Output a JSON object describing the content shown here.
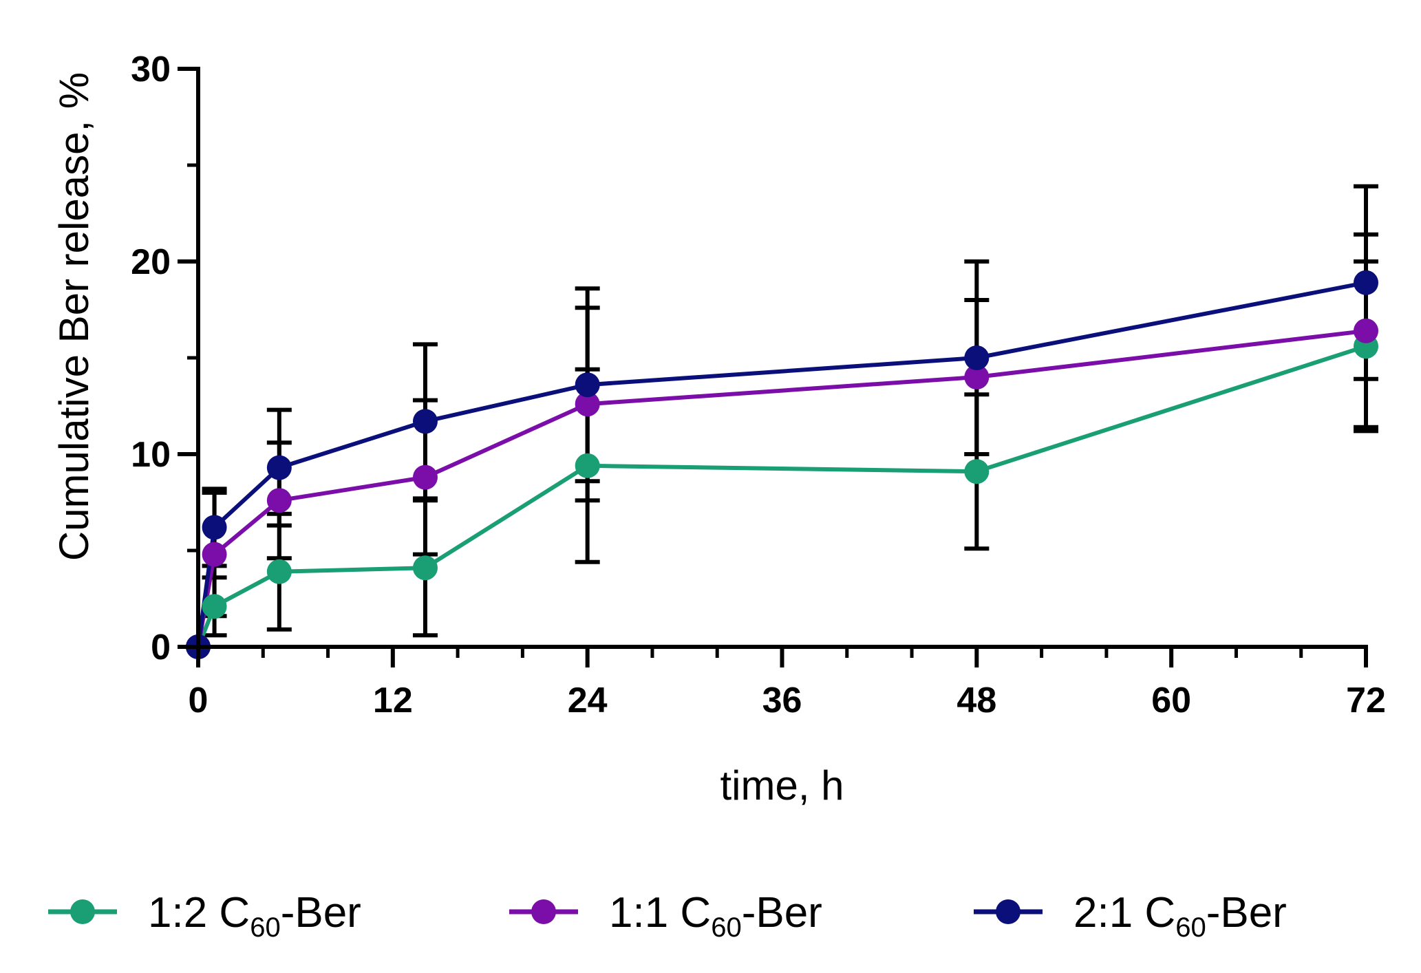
{
  "chart_data": {
    "type": "line",
    "xlabel": "time, h",
    "ylabel": "Cumulative Ber release, %",
    "xlim": [
      0,
      72
    ],
    "ylim": [
      0,
      30
    ],
    "xticks": [
      0,
      12,
      24,
      36,
      48,
      60,
      72
    ],
    "xtick_labels": [
      "0",
      "12",
      "24",
      "36",
      "48",
      "60",
      "72"
    ],
    "yticks": [
      0,
      10,
      20,
      30
    ],
    "ytick_labels": [
      "0",
      "10",
      "20",
      "30"
    ],
    "grid": false,
    "legend_position": "bottom",
    "series": [
      {
        "name": "1:2 C60-Ber",
        "legend": {
          "prefix": "1:2 C",
          "sub": "60",
          "suffix": "-Ber"
        },
        "color": "#1a9e74",
        "x": [
          0,
          1,
          5,
          14,
          24,
          48,
          72
        ],
        "y": [
          0,
          2.1,
          3.9,
          4.1,
          9.4,
          9.1,
          15.6
        ],
        "err": [
          0,
          1.5,
          3.0,
          3.5,
          5.0,
          4.0,
          4.4
        ]
      },
      {
        "name": "1:1 C60-Ber",
        "legend": {
          "prefix": "1:1 C",
          "sub": "60",
          "suffix": "-Ber"
        },
        "color": "#7b0ea8",
        "x": [
          0,
          1,
          5,
          14,
          24,
          48,
          72
        ],
        "y": [
          0,
          4.8,
          7.6,
          8.8,
          12.6,
          14.0,
          16.4
        ],
        "err": [
          0,
          3.2,
          3.0,
          4.0,
          5.0,
          4.0,
          5.0
        ]
      },
      {
        "name": "2:1 C60-Ber",
        "legend": {
          "prefix": "2:1 C",
          "sub": "60",
          "suffix": "-Ber"
        },
        "color": "#0a0f7a",
        "x": [
          0,
          1,
          5,
          14,
          24,
          48,
          72
        ],
        "y": [
          0,
          6.2,
          9.3,
          11.7,
          13.6,
          15.0,
          18.9
        ],
        "err": [
          0,
          2.0,
          3.0,
          4.0,
          5.0,
          5.0,
          5.0
        ]
      }
    ]
  }
}
